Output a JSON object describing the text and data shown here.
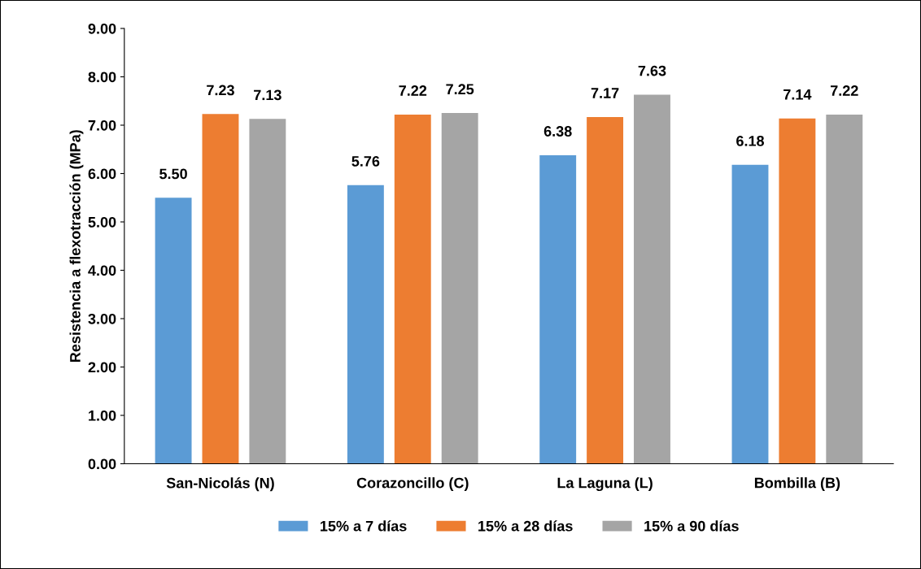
{
  "chart_data": {
    "type": "bar",
    "ylabel": "Resistencia a flexotracción (MPa)",
    "categories": [
      "San-Nicolás (N)",
      "Corazoncillo (C)",
      "La Laguna (L)",
      "Bombilla (B)"
    ],
    "series": [
      {
        "name": "15% a 7 días",
        "color": "#5b9bd5",
        "values": [
          5.5,
          5.76,
          6.38,
          6.18
        ],
        "value_labels": [
          "5.50",
          "5.76",
          "6.38",
          "6.18"
        ]
      },
      {
        "name": "15% a 28 días",
        "color": "#ed7d31",
        "values": [
          7.23,
          7.22,
          7.17,
          7.14
        ],
        "value_labels": [
          "7.23",
          "7.22",
          "7.17",
          "7.14"
        ]
      },
      {
        "name": "15% a 90 días",
        "color": "#a5a5a5",
        "values": [
          7.13,
          7.25,
          7.63,
          7.22
        ],
        "value_labels": [
          "7.13",
          "7.25",
          "7.63",
          "7.22"
        ]
      }
    ],
    "ylim": [
      0,
      9
    ],
    "yticks": [
      {
        "value": 0,
        "label": "0.00"
      },
      {
        "value": 1,
        "label": "1.00"
      },
      {
        "value": 2,
        "label": "2.00"
      },
      {
        "value": 3,
        "label": "3.00"
      },
      {
        "value": 4,
        "label": "4.00"
      },
      {
        "value": 5,
        "label": "5.00"
      },
      {
        "value": 6,
        "label": "6.00"
      },
      {
        "value": 7,
        "label": "7.00"
      },
      {
        "value": 8,
        "label": "8.00"
      },
      {
        "value": 9,
        "label": "9.00"
      }
    ],
    "grid": false,
    "legend": "bottom"
  }
}
